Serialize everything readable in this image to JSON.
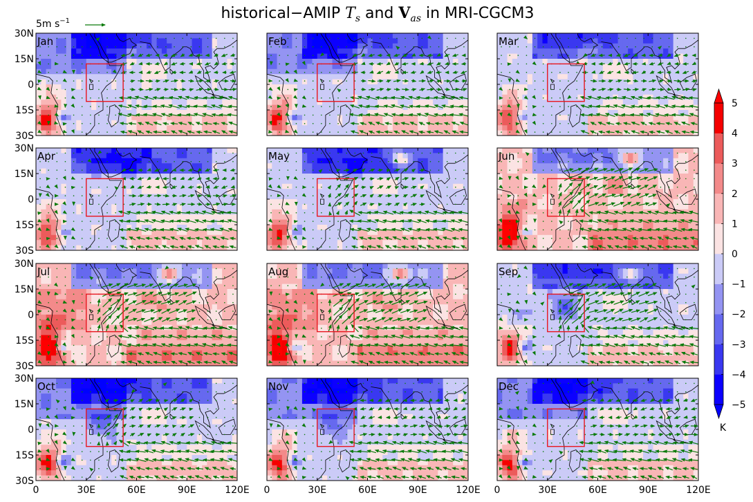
{
  "title": {
    "prefix": "historical−AMIP ",
    "ts": "T",
    "ts_sub": "s",
    "and": " and ",
    "v": "V",
    "v_sub": "as",
    "suffix": " in MRI-CGCM3"
  },
  "reference_vector": {
    "label": "5m s",
    "exponent": "−1",
    "value_ms": 5
  },
  "chart_data": {
    "type": "heatmap",
    "subtype": "map panels with wind vectors",
    "panels": [
      "Jan",
      "Feb",
      "Mar",
      "Apr",
      "May",
      "Jun",
      "Jul",
      "Aug",
      "Sep",
      "Oct",
      "Nov",
      "Dec"
    ],
    "xlabel": "",
    "ylabel": "",
    "xlim": [
      0,
      120
    ],
    "ylim": [
      -30,
      30
    ],
    "x_ticks": [
      0,
      30,
      60,
      90,
      120
    ],
    "x_tick_labels": [
      "0",
      "30E",
      "60E",
      "90E",
      "120E"
    ],
    "y_ticks": [
      30,
      15,
      0,
      -15,
      -30
    ],
    "y_tick_labels": [
      "30N",
      "15N",
      "0",
      "15S",
      "30S"
    ],
    "highlight_box": {
      "lon": [
        30,
        52
      ],
      "lat": [
        -10,
        12
      ],
      "color": "#e8161e"
    },
    "colorbar": {
      "levels": [
        -5,
        -4,
        -3,
        -2,
        -1,
        0,
        1,
        2,
        3,
        4,
        5
      ],
      "tick_labels": [
        "−5",
        "−4",
        "−3",
        "−2",
        "−1",
        "0",
        "1",
        "2",
        "3",
        "4",
        "5"
      ],
      "colors": [
        "#0c00ff",
        "#3a38f0",
        "#6669ef",
        "#9494f2",
        "#cbcbf7",
        "#fbe3e3",
        "#f9b6b6",
        "#f38a8a",
        "#ec5b5b",
        "#f50000"
      ],
      "extend": "both",
      "units": "K"
    },
    "vector_color": "#0a7a0a"
  }
}
